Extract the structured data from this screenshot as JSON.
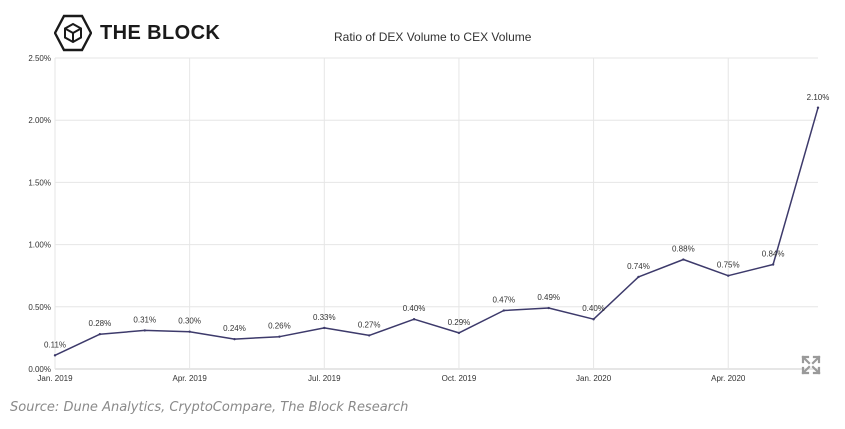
{
  "brand": {
    "name": "THE BLOCK",
    "logo_icon": "cube-in-hexagon-icon"
  },
  "controls": {
    "fullscreen_icon": "expand-arrows-icon"
  },
  "source_text": "Source: Dune Analytics, CryptoCompare, The Block Research",
  "colors": {
    "line": "#3d3a6b",
    "grid": "#e6e6e6",
    "axis_text": "#333333",
    "label_text": "#333333"
  },
  "chart_data": {
    "type": "line",
    "title": "Ratio of DEX Volume to CEX Volume",
    "xlabel": "",
    "ylabel": "",
    "grid": true,
    "ylim": [
      0,
      2.5
    ],
    "y_ticks": [
      0,
      0.5,
      1.0,
      1.5,
      2.0,
      2.5
    ],
    "y_tick_labels": [
      "0.00%",
      "0.50%",
      "1.00%",
      "1.50%",
      "2.00%",
      "2.50%"
    ],
    "x_tick_labels": [
      {
        "index": 0,
        "label": "Jan. 2019"
      },
      {
        "index": 3,
        "label": "Apr. 2019"
      },
      {
        "index": 6,
        "label": "Jul. 2019"
      },
      {
        "index": 9,
        "label": "Oct. 2019"
      },
      {
        "index": 12,
        "label": "Jan. 2020"
      },
      {
        "index": 15,
        "label": "Apr. 2020"
      }
    ],
    "x": [
      "Jan. 2019",
      "Feb. 2019",
      "Mar. 2019",
      "Apr. 2019",
      "May 2019",
      "Jun. 2019",
      "Jul. 2019",
      "Aug. 2019",
      "Sep. 2019",
      "Oct. 2019",
      "Nov. 2019",
      "Dec. 2019",
      "Jan. 2020",
      "Feb. 2020",
      "Mar. 2020",
      "Apr. 2020",
      "May 2020",
      "Jun. 2020"
    ],
    "values": [
      0.11,
      0.28,
      0.31,
      0.3,
      0.24,
      0.26,
      0.33,
      0.27,
      0.4,
      0.29,
      0.47,
      0.49,
      0.4,
      0.74,
      0.88,
      0.75,
      0.84,
      2.1
    ],
    "value_labels": [
      "0.11%",
      "0.28%",
      "0.31%",
      "0.30%",
      "0.24%",
      "0.26%",
      "0.33%",
      "0.27%",
      "0.40%",
      "0.29%",
      "0.47%",
      "0.49%",
      "0.40%",
      "0.74%",
      "0.88%",
      "0.75%",
      "0.84%",
      "2.10%"
    ]
  }
}
